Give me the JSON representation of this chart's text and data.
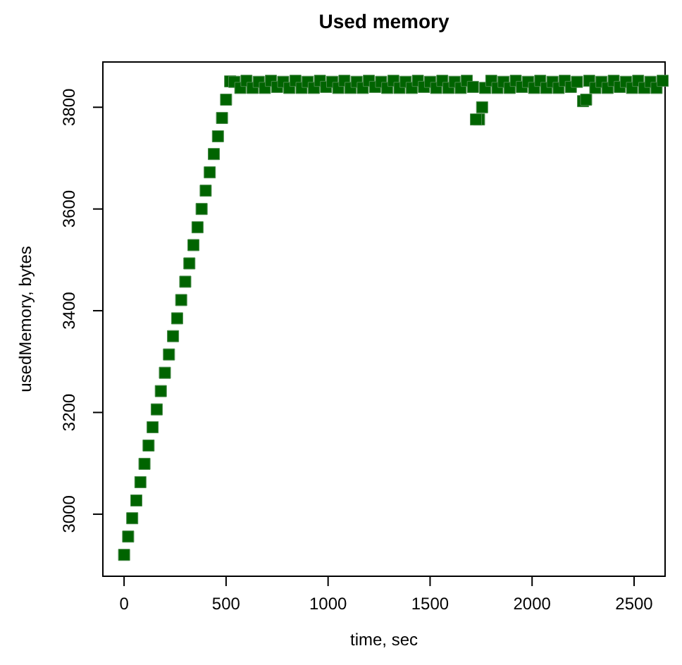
{
  "chart_data": {
    "type": "scatter",
    "title": "Used memory",
    "xlabel": "time, sec",
    "ylabel": "usedMemory, bytes",
    "marker": "square",
    "xlim": [
      -104,
      2652
    ],
    "ylim": [
      2878,
      3889
    ],
    "xticks": [
      0,
      500,
      1000,
      1500,
      2000,
      2500
    ],
    "yticks": [
      3000,
      3200,
      3400,
      3600,
      3800
    ],
    "series": [
      {
        "color": "#006400",
        "x": [
          0,
          20,
          40,
          60,
          80,
          100,
          120,
          140,
          160,
          180,
          200,
          220,
          240,
          260,
          280,
          300,
          320,
          340,
          360,
          380,
          400,
          420,
          440,
          460,
          480,
          500,
          520,
          540,
          570,
          600,
          630,
          660,
          690,
          720,
          750,
          780,
          810,
          840,
          870,
          900,
          930,
          960,
          990,
          1020,
          1050,
          1080,
          1110,
          1140,
          1170,
          1200,
          1230,
          1260,
          1290,
          1320,
          1350,
          1380,
          1410,
          1440,
          1470,
          1500,
          1530,
          1560,
          1590,
          1620,
          1650,
          1680,
          1710,
          1740,
          1770,
          1800,
          1830,
          1860,
          1890,
          1920,
          1950,
          1980,
          2010,
          2040,
          2070,
          2100,
          2130,
          2160,
          2190,
          2220,
          2250,
          2280,
          2310,
          2340,
          2370,
          2400,
          2430,
          2460,
          2490,
          2520,
          2550,
          2580,
          2610,
          2640,
          1725,
          1755,
          2265
        ],
        "values": [
          2920,
          2956,
          2992,
          3027,
          3063,
          3099,
          3135,
          3171,
          3206,
          3242,
          3278,
          3314,
          3350,
          3385,
          3421,
          3457,
          3493,
          3529,
          3564,
          3600,
          3636,
          3672,
          3708,
          3743,
          3779,
          3815,
          3851,
          3850,
          3838,
          3852,
          3838,
          3850,
          3838,
          3852,
          3840,
          3850,
          3838,
          3852,
          3838,
          3850,
          3838,
          3852,
          3840,
          3850,
          3838,
          3852,
          3838,
          3850,
          3838,
          3852,
          3840,
          3850,
          3838,
          3852,
          3838,
          3850,
          3838,
          3852,
          3840,
          3850,
          3838,
          3852,
          3838,
          3850,
          3838,
          3852,
          3840,
          3776,
          3838,
          3852,
          3838,
          3850,
          3838,
          3852,
          3840,
          3850,
          3838,
          3852,
          3838,
          3850,
          3838,
          3852,
          3840,
          3850,
          3812,
          3852,
          3838,
          3850,
          3838,
          3852,
          3840,
          3850,
          3838,
          3852,
          3838,
          3850,
          3838,
          3852,
          3776,
          3800,
          3815
        ]
      }
    ]
  }
}
